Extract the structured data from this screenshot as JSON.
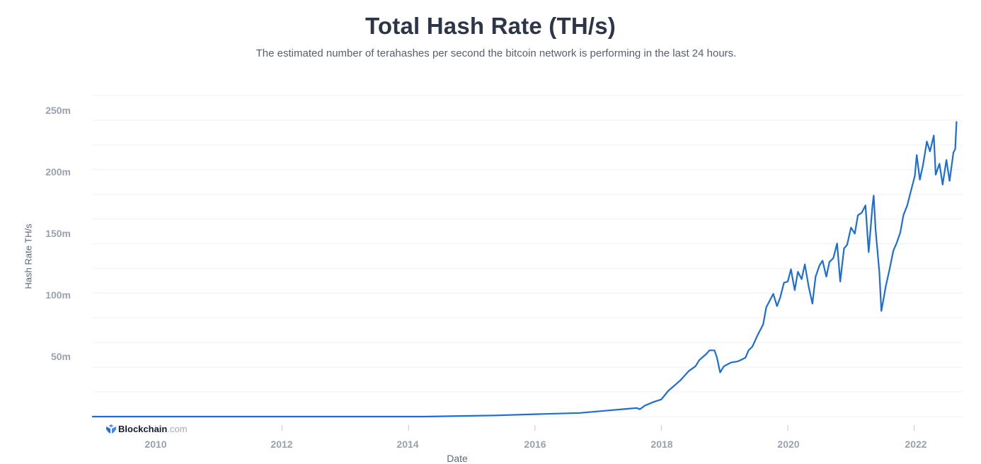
{
  "header": {
    "title": "Total Hash Rate (TH/s)",
    "subtitle": "The estimated number of terahashes per second the bitcoin network is performing in the last 24 hours."
  },
  "axes": {
    "ylabel": "Hash Rate TH/s",
    "xlabel": "Date",
    "yticks": [
      "250m",
      "200m",
      "150m",
      "100m",
      "50m"
    ],
    "xticks": [
      "2010",
      "2012",
      "2014",
      "2016",
      "2018",
      "2020",
      "2022"
    ]
  },
  "branding": {
    "logo_name": "Blockchain",
    "logo_suffix": ".com",
    "icon": "blockchain-cube-icon"
  },
  "colors": {
    "line": "#1c6ed6",
    "grid": "#eef0f3",
    "title": "#2d3648",
    "tick": "#9aa1ae"
  },
  "chart_data": {
    "type": "line",
    "title": "Total Hash Rate (TH/s)",
    "subtitle": "The estimated number of terahashes per second the bitcoin network is performing in the last 24 hours.",
    "xlabel": "Date",
    "ylabel": "Hash Rate TH/s",
    "ylim": [
      0,
      260000000
    ],
    "xlim": [
      2009.0,
      2022.8
    ],
    "ytick_labels": [
      "50m",
      "100m",
      "150m",
      "200m",
      "250m"
    ],
    "xtick_labels": [
      "2010",
      "2012",
      "2014",
      "2016",
      "2018",
      "2020",
      "2022"
    ],
    "grid": true,
    "legend": null,
    "series": [
      {
        "name": "Hash Rate",
        "x": [
          2009.0,
          2014.25,
          2015.37,
          2016.04,
          2016.71,
          2017.16,
          2017.38,
          2017.61,
          2017.66,
          2017.74,
          2017.88,
          2018.0,
          2018.11,
          2018.2,
          2018.31,
          2018.43,
          2018.54,
          2018.6,
          2018.71,
          2018.76,
          2018.84,
          2018.88,
          2018.93,
          2018.99,
          2019.1,
          2019.21,
          2019.33,
          2019.38,
          2019.44,
          2019.52,
          2019.61,
          2019.66,
          2019.72,
          2019.77,
          2019.83,
          2019.88,
          2019.94,
          2020.0,
          2020.05,
          2020.11,
          2020.16,
          2020.22,
          2020.27,
          2020.33,
          2020.39,
          2020.44,
          2020.5,
          2020.55,
          2020.61,
          2020.66,
          2020.72,
          2020.78,
          2020.83,
          2020.89,
          2020.94,
          2021.0,
          2021.06,
          2021.11,
          2021.17,
          2021.23,
          2021.28,
          2021.34,
          2021.36,
          2021.39,
          2021.45,
          2021.48,
          2021.52,
          2021.55,
          2021.61,
          2021.67,
          2021.72,
          2021.78,
          2021.83,
          2021.89,
          2021.95,
          2022.01,
          2022.04,
          2022.09,
          2022.14,
          2022.2,
          2022.25,
          2022.31,
          2022.34,
          2022.4,
          2022.45,
          2022.51,
          2022.56,
          2022.62,
          2022.65,
          2022.67
        ],
        "values_m": [
          0,
          0,
          1,
          2,
          3,
          5,
          6,
          7,
          6,
          9,
          12,
          14,
          21,
          25,
          30,
          37,
          41,
          46,
          51,
          54,
          54,
          48,
          36,
          41,
          44,
          45,
          48,
          54,
          57,
          66,
          75,
          89,
          95,
          100,
          90,
          97,
          109,
          110,
          120,
          103,
          118,
          112,
          124,
          106,
          92,
          114,
          123,
          127,
          114,
          126,
          129,
          141,
          110,
          137,
          140,
          154,
          149,
          164,
          166,
          172,
          134,
          172,
          180,
          152,
          117,
          86,
          97,
          106,
          120,
          135,
          141,
          150,
          164,
          172,
          184,
          196,
          213,
          193,
          205,
          224,
          216,
          229,
          197,
          206,
          189,
          209,
          192,
          215,
          218,
          240
        ]
      }
    ]
  }
}
